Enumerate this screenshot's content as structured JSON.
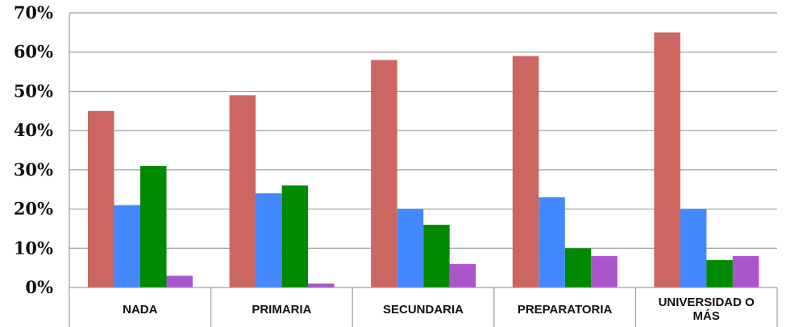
{
  "chart_data": {
    "type": "bar",
    "title": "",
    "xlabel": "",
    "ylabel": "",
    "categories": [
      "NADA",
      "PRIMARIA",
      "SECUNDARIA",
      "PREPARATORIA",
      "UNIVERSIDAD O MÁS"
    ],
    "category_lines": [
      [
        "NADA"
      ],
      [
        "PRIMARIA"
      ],
      [
        "SECUNDARIA"
      ],
      [
        "PREPARATORIA"
      ],
      [
        "UNIVERSIDAD O",
        "MÁS"
      ]
    ],
    "series": [
      {
        "values": [
          45,
          49,
          58,
          59,
          65
        ],
        "color": "#cc6660"
      },
      {
        "values": [
          21,
          24,
          20,
          23,
          20
        ],
        "color": "#4488ff"
      },
      {
        "values": [
          31,
          26,
          16,
          10,
          7
        ],
        "color": "#008a00"
      },
      {
        "values": [
          3,
          1,
          6,
          8,
          8
        ],
        "color": "#aa55cc"
      }
    ],
    "ylim": [
      0,
      70
    ],
    "yticks": [
      0,
      10,
      20,
      30,
      40,
      50,
      60,
      70
    ],
    "ytick_labels": [
      "0%",
      "10%",
      "20%",
      "30%",
      "40%",
      "50%",
      "60%",
      "70%"
    ],
    "grid": true,
    "legend": "none"
  }
}
